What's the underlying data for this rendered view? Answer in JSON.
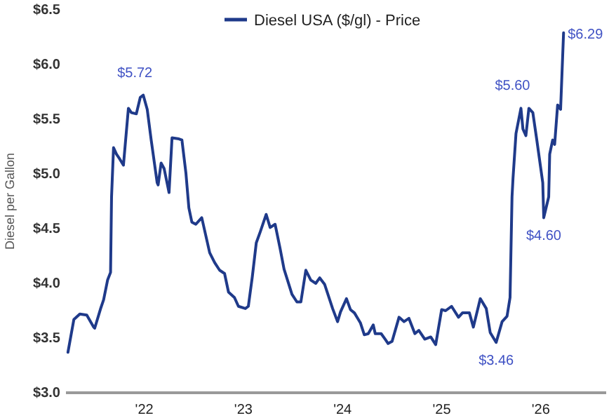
{
  "chart_data": {
    "type": "line",
    "ylabel": "Diesel per Gallon",
    "x": [
      2021.23,
      2021.29,
      2021.35,
      2021.42,
      2021.49,
      2021.5,
      2021.56,
      2021.59,
      2021.63,
      2021.66,
      2021.67,
      2021.69,
      2021.72,
      2021.75,
      2021.79,
      2021.84,
      2021.87,
      2021.92,
      2021.96,
      2021.99,
      2022.03,
      2022.07,
      2022.13,
      2022.14,
      2022.17,
      2022.2,
      2022.25,
      2022.28,
      2022.35,
      2022.38,
      2022.42,
      2022.45,
      2022.48,
      2022.52,
      2022.58,
      2022.62,
      2022.66,
      2022.71,
      2022.76,
      2022.81,
      2022.85,
      2022.91,
      2022.95,
      2023.02,
      2023.05,
      2023.09,
      2023.13,
      2023.17,
      2023.23,
      2023.27,
      2023.32,
      2023.37,
      2023.41,
      2023.49,
      2023.54,
      2023.58,
      2023.63,
      2023.68,
      2023.73,
      2023.77,
      2023.82,
      2023.9,
      2023.95,
      2023.98,
      2024.04,
      2024.08,
      2024.12,
      2024.18,
      2024.22,
      2024.26,
      2024.31,
      2024.33,
      2024.39,
      2024.43,
      2024.46,
      2024.5,
      2024.57,
      2024.62,
      2024.67,
      2024.73,
      2024.77,
      2024.83,
      2024.89,
      2024.94,
      2025.0,
      2025.04,
      2025.1,
      2025.17,
      2025.21,
      2025.28,
      2025.32,
      2025.39,
      2025.45,
      2025.49,
      2025.55,
      2025.61,
      2025.66,
      2025.69,
      2025.71,
      2025.72,
      2025.75,
      2025.8,
      2025.82,
      2025.85,
      2025.88,
      2025.92,
      2025.96,
      2026.02,
      2026.03,
      2026.08,
      2026.09,
      2026.12,
      2026.14,
      2026.17,
      2026.2,
      2026.23
    ],
    "series": [
      {
        "name": "Diesel USA ($/gl) - Price",
        "color": "#1f3a8a",
        "values": [
          3.37,
          3.67,
          3.72,
          3.71,
          3.6,
          3.59,
          3.77,
          3.85,
          4.03,
          4.1,
          4.79,
          5.24,
          5.18,
          5.14,
          5.08,
          5.6,
          5.56,
          5.55,
          5.7,
          5.72,
          5.59,
          5.31,
          4.92,
          4.9,
          5.1,
          5.05,
          4.83,
          5.33,
          5.32,
          5.31,
          5.01,
          4.69,
          4.56,
          4.54,
          4.6,
          4.44,
          4.28,
          4.19,
          4.12,
          4.09,
          3.92,
          3.87,
          3.79,
          3.77,
          3.79,
          4.06,
          4.37,
          4.47,
          4.63,
          4.51,
          4.54,
          4.32,
          4.13,
          3.9,
          3.83,
          3.83,
          4.12,
          4.03,
          4.0,
          4.05,
          3.99,
          3.77,
          3.65,
          3.74,
          3.86,
          3.76,
          3.73,
          3.64,
          3.53,
          3.54,
          3.62,
          3.54,
          3.54,
          3.49,
          3.45,
          3.47,
          3.69,
          3.65,
          3.68,
          3.54,
          3.57,
          3.49,
          3.51,
          3.44,
          3.76,
          3.75,
          3.79,
          3.69,
          3.73,
          3.73,
          3.6,
          3.86,
          3.77,
          3.55,
          3.46,
          3.65,
          3.7,
          3.87,
          4.79,
          4.96,
          5.37,
          5.6,
          5.41,
          5.35,
          5.6,
          5.56,
          5.31,
          4.92,
          4.6,
          4.79,
          5.18,
          5.31,
          5.27,
          5.63,
          5.59,
          6.29
        ]
      }
    ],
    "xlim": [
      2021.21,
      2026.66
    ],
    "xticks": [
      {
        "value": 2022,
        "label": "'22"
      },
      {
        "value": 2023,
        "label": "'23"
      },
      {
        "value": 2024,
        "label": "'24"
      },
      {
        "value": 2025,
        "label": "'25"
      },
      {
        "value": 2026,
        "label": "'26"
      }
    ],
    "ylim": [
      3.0,
      6.5
    ],
    "yticks": [
      {
        "value": 3.0,
        "label": "$3.0"
      },
      {
        "value": 3.5,
        "label": "$3.5"
      },
      {
        "value": 4.0,
        "label": "$4.0"
      },
      {
        "value": 4.5,
        "label": "$4.5"
      },
      {
        "value": 5.0,
        "label": "$5.0"
      },
      {
        "value": 5.5,
        "label": "$5.5"
      },
      {
        "value": 6.0,
        "label": "$6.0"
      },
      {
        "value": 6.5,
        "label": "$6.5"
      }
    ],
    "annotations": [
      {
        "text": "$5.72",
        "x": 2021.99,
        "y": 5.72
      },
      {
        "text": "$5.60",
        "x": 2025.8,
        "y": 5.6
      },
      {
        "text": "$4.60",
        "x": 2026.03,
        "y": 4.6
      },
      {
        "text": "$3.46",
        "x": 2025.55,
        "y": 3.46
      },
      {
        "text": "$6.29",
        "x": 2026.23,
        "y": 6.29
      }
    ],
    "grid": false,
    "legend": "top",
    "line_style": "solid"
  }
}
